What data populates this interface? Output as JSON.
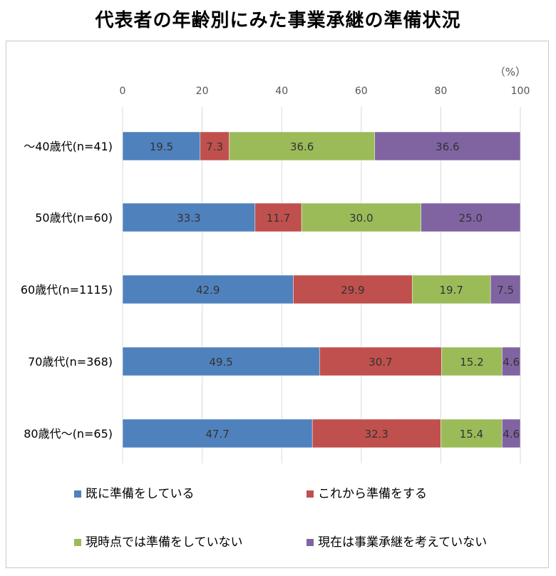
{
  "title": "代表者の年齢別にみた事業承継の準備状況",
  "chart_data": {
    "type": "bar",
    "orientation": "horizontal",
    "stacked": true,
    "unit_label": "（%）",
    "xlim": [
      0,
      100
    ],
    "xticks": [
      "0",
      "20",
      "40",
      "60",
      "80",
      "100"
    ],
    "grid": true,
    "legend_position": "bottom",
    "categories": [
      "～40歳代(n=41)",
      "50歳代(n=60)",
      "60歳代(n=1115)",
      "70歳代(n=368)",
      "80歳代～(n=65)"
    ],
    "series": [
      {
        "name": "既に準備をしている",
        "color": "#4f81bd",
        "values": [
          19.5,
          33.3,
          42.9,
          49.5,
          47.7
        ]
      },
      {
        "name": "これから準備をする",
        "color": "#c0504d",
        "values": [
          7.3,
          11.7,
          29.9,
          30.7,
          32.3
        ]
      },
      {
        "name": "現時点では準備をしていない",
        "color": "#9bbb59",
        "values": [
          36.6,
          30.0,
          19.7,
          15.2,
          15.4
        ]
      },
      {
        "name": "現在は事業承継を考えていない",
        "color": "#8064a2",
        "values": [
          36.6,
          25.0,
          7.5,
          4.6,
          4.6
        ]
      }
    ]
  }
}
